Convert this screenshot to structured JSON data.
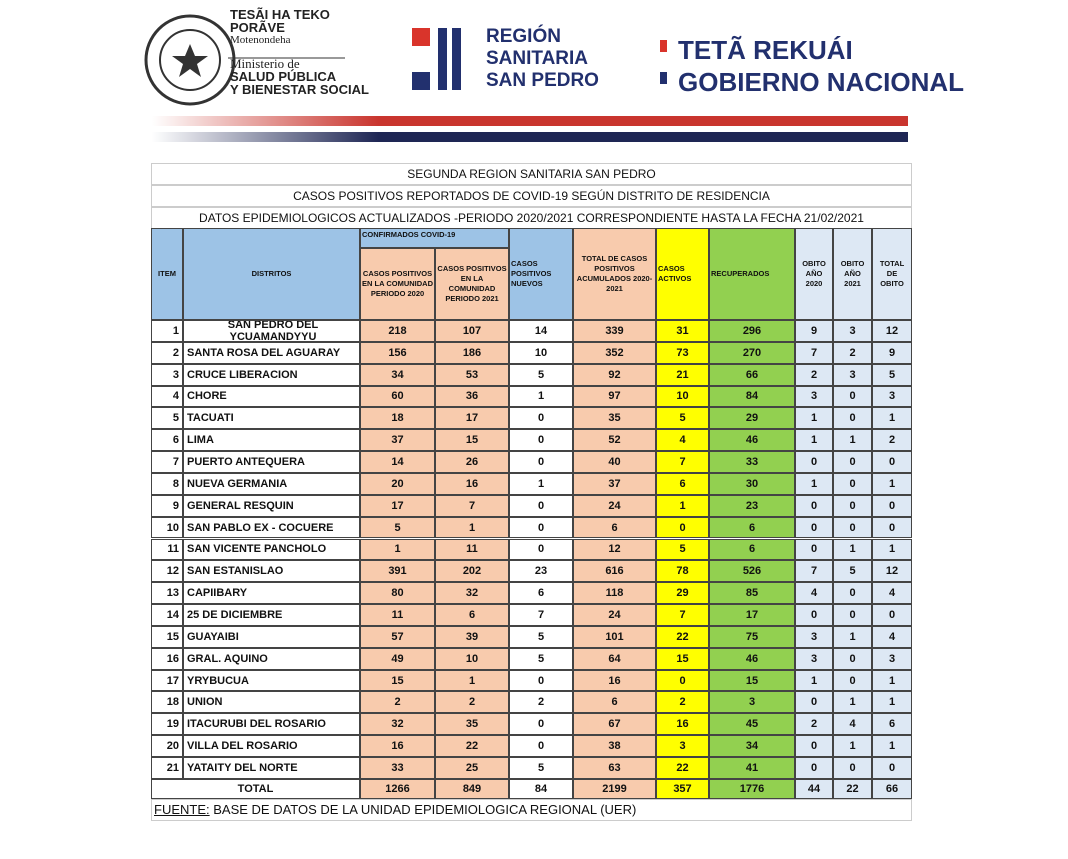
{
  "header": {
    "ministry": [
      "TESÃI HA TEKO",
      "PORÃVE",
      "Motenondeha",
      "Ministerio de",
      "SALUD PÚBLICA",
      "Y BIENESTAR SOCIAL"
    ],
    "region": [
      "REGIÓN",
      "SANITARIA",
      "SAN PEDRO"
    ],
    "government": [
      "TETÃ REKUÁI",
      "GOBIERNO NACIONAL"
    ]
  },
  "table": {
    "titles": [
      "SEGUNDA REGION SANITARIA SAN PEDRO",
      "CASOS POSITIVOS REPORTADOS  DE COVID-19 SEGÚN  DISTRITO  DE RESIDENCIA",
      "DATOS EPIDEMIOLOGICOS ACTUALIZADOS -PERIODO 2020/2021 CORRESPONDIENTE HASTA LA FECHA 21/02/2021"
    ],
    "group_header": "CONFIRMADOS COVID-19",
    "columns": [
      "ITEM",
      "DISTRITOS",
      "CASOS POSITIVOS EN LA COMUNIDAD PERIODO 2020",
      "CASOS POSITIVOS EN LA COMUNIDAD PERIODO 2021",
      "CASOS POSITIVOS NUEVOS",
      "TOTAL DE CASOS POSITIVOS ACUMULADOS 2020-2021",
      "CASOS ACTIVOS",
      "RECUPERADOS",
      "OBITO AÑO 2020",
      "OBITO AÑO 2021",
      "TOTAL DE OBITO"
    ],
    "rows": [
      [
        1,
        "SAN PEDRO DEL YCUAMANDYYU",
        218,
        107,
        14,
        339,
        31,
        296,
        9,
        3,
        12
      ],
      [
        2,
        "SANTA ROSA DEL AGUARAY",
        156,
        186,
        10,
        352,
        73,
        270,
        7,
        2,
        9
      ],
      [
        3,
        "CRUCE LIBERACION",
        34,
        53,
        5,
        92,
        21,
        66,
        2,
        3,
        5
      ],
      [
        4,
        "CHORE",
        60,
        36,
        1,
        97,
        10,
        84,
        3,
        0,
        3
      ],
      [
        5,
        "TACUATI",
        18,
        17,
        0,
        35,
        5,
        29,
        1,
        0,
        1
      ],
      [
        6,
        "LIMA",
        37,
        15,
        0,
        52,
        4,
        46,
        1,
        1,
        2
      ],
      [
        7,
        "PUERTO ANTEQUERA",
        14,
        26,
        0,
        40,
        7,
        33,
        0,
        0,
        0
      ],
      [
        8,
        "NUEVA GERMANIA",
        20,
        16,
        1,
        37,
        6,
        30,
        1,
        0,
        1
      ],
      [
        9,
        "GENERAL RESQUIN",
        17,
        7,
        0,
        24,
        1,
        23,
        0,
        0,
        0
      ],
      [
        10,
        "SAN PABLO EX - COCUERE",
        5,
        1,
        0,
        6,
        0,
        6,
        0,
        0,
        0
      ],
      [
        11,
        "SAN VICENTE PANCHOLO",
        1,
        11,
        0,
        12,
        5,
        6,
        0,
        1,
        1
      ],
      [
        12,
        "SAN ESTANISLAO",
        391,
        202,
        23,
        616,
        78,
        526,
        7,
        5,
        12
      ],
      [
        13,
        "CAPIIBARY",
        80,
        32,
        6,
        118,
        29,
        85,
        4,
        0,
        4
      ],
      [
        14,
        "25 DE DICIEMBRE",
        11,
        6,
        7,
        24,
        7,
        17,
        0,
        0,
        0
      ],
      [
        15,
        "GUAYAIBI",
        57,
        39,
        5,
        101,
        22,
        75,
        3,
        1,
        4
      ],
      [
        16,
        "GRAL. AQUINO",
        49,
        10,
        5,
        64,
        15,
        46,
        3,
        0,
        3
      ],
      [
        17,
        "YRYBUCUA",
        15,
        1,
        0,
        16,
        0,
        15,
        1,
        0,
        1
      ],
      [
        18,
        "UNION",
        2,
        2,
        2,
        6,
        2,
        3,
        0,
        1,
        1
      ],
      [
        19,
        "ITACURUBI DEL ROSARIO",
        32,
        35,
        0,
        67,
        16,
        45,
        2,
        4,
        6
      ],
      [
        20,
        "VILLA DEL ROSARIO",
        16,
        22,
        0,
        38,
        3,
        34,
        0,
        1,
        1
      ],
      [
        21,
        "YATAITY DEL NORTE",
        33,
        25,
        5,
        63,
        22,
        41,
        0,
        0,
        0
      ]
    ],
    "total": {
      "label": "TOTAL",
      "values": [
        1266,
        849,
        84,
        2199,
        357,
        1776,
        44,
        22,
        66
      ]
    }
  },
  "footer": {
    "label": "FUENTE:",
    "text": " BASE DE DATOS DE LA UNIDAD EPIDEMIOLOGICA REGIONAL (UER)"
  }
}
